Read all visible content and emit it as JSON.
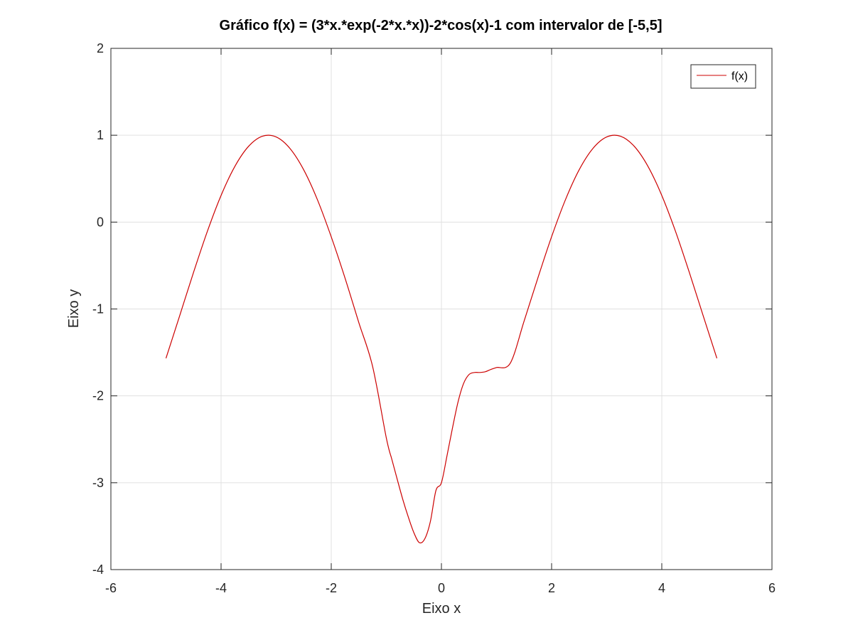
{
  "chart_data": {
    "type": "line",
    "title": "Gráfico f(x) =  (3*x.*exp(-2*x.*x))-2*cos(x)-1 com intervalor de [-5,5]",
    "xlabel": "Eixo x",
    "ylabel": "Eixo y",
    "xlim": [
      -6,
      6
    ],
    "ylim": [
      -4,
      2
    ],
    "xticks": [
      -6,
      -4,
      -2,
      0,
      2,
      4,
      6
    ],
    "yticks": [
      -4,
      -3,
      -2,
      -1,
      0,
      1,
      2
    ],
    "xtick_labels": [
      "-6",
      "-4",
      "-2",
      "0",
      "2",
      "4",
      "6"
    ],
    "ytick_labels": [
      "-4",
      "-3",
      "-2",
      "-1",
      "0",
      "1",
      "2"
    ],
    "grid": true,
    "legend_position": "top-right",
    "series": [
      {
        "name": "f(x)",
        "color": "#cc0000",
        "x": [
          -5,
          -4.75,
          -4.5,
          -4.25,
          -4,
          -3.75,
          -3.5,
          -3.25,
          -3,
          -2.75,
          -2.5,
          -2.25,
          -2,
          -1.75,
          -1.5,
          -1.25,
          -1,
          -0.9,
          -0.8,
          -0.7,
          -0.6,
          -0.5,
          -0.4,
          -0.3,
          -0.2,
          -0.1,
          0,
          0.1,
          0.2,
          0.3,
          0.4,
          0.5,
          0.6,
          0.7,
          0.8,
          0.9,
          1,
          1.25,
          1.5,
          1.75,
          2,
          2.25,
          2.5,
          2.75,
          3,
          3.25,
          3.5,
          3.75,
          4,
          4.25,
          4.5,
          4.75,
          5
        ],
        "y": [
          -1.567,
          -1.075,
          -0.579,
          -0.108,
          0.307,
          0.641,
          0.873,
          0.989,
          0.98,
          0.848,
          0.602,
          0.256,
          -0.17,
          -0.644,
          -1.156,
          -1.66,
          -2.486,
          -2.731,
          -2.966,
          -3.195,
          -3.397,
          -3.575,
          -3.69,
          -3.643,
          -3.444,
          -3.09,
          -3.0,
          -2.693,
          -2.372,
          -2.074,
          -1.861,
          -1.755,
          -1.731,
          -1.731,
          -1.722,
          -1.695,
          -1.674,
          -1.624,
          -1.141,
          -0.644,
          -0.168,
          0.256,
          0.602,
          0.848,
          0.98,
          0.989,
          0.873,
          0.641,
          0.307,
          -0.108,
          -0.579,
          -1.075,
          -1.567
        ]
      }
    ]
  },
  "colors": {
    "line": "#cc0000",
    "grid": "#e0e0e0",
    "axis": "#262626"
  }
}
